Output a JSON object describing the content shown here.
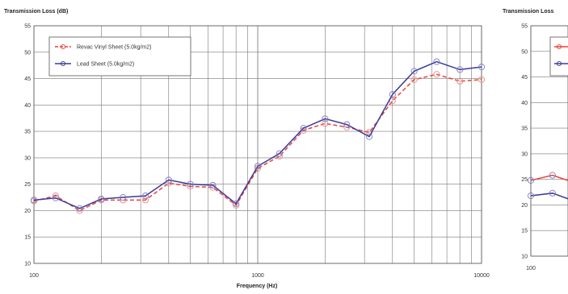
{
  "chart_data": [
    {
      "type": "line",
      "title": "Transmission Loss (dB)",
      "xlabel": "Frequency (Hz)",
      "ylabel": "",
      "xscale": "log",
      "xlim": [
        100,
        10000
      ],
      "ylim": [
        10,
        55
      ],
      "yticks": [
        "10",
        "15",
        "20",
        "25",
        "30",
        "35",
        "40",
        "45",
        "50",
        "55"
      ],
      "xticks": [
        "100",
        "1000",
        "10000"
      ],
      "grid": true,
      "legend": "top-left",
      "x": [
        100,
        125,
        160,
        200,
        250,
        315,
        400,
        500,
        630,
        800,
        1000,
        1250,
        1600,
        2000,
        2500,
        3150,
        4000,
        5000,
        6300,
        8000,
        10000
      ],
      "series": [
        {
          "name": "Revac Vinyl Sheet (5.0kg/m2)",
          "color": "#e8413a",
          "dash": true,
          "values": [
            21.8,
            22.8,
            20.0,
            22.0,
            22.0,
            22.0,
            25.2,
            24.6,
            24.4,
            21.0,
            28.0,
            30.3,
            35.2,
            36.5,
            35.8,
            34.8,
            40.8,
            44.8,
            45.8,
            44.5,
            44.8
          ]
        },
        {
          "name": "Lead Sheet (5.0kg/m2)",
          "color": "#3a3a9a",
          "dash": false,
          "values": [
            22.0,
            22.4,
            20.4,
            22.2,
            22.5,
            22.8,
            25.8,
            25.0,
            24.8,
            21.3,
            28.4,
            30.8,
            35.6,
            37.4,
            36.3,
            34.0,
            42.0,
            46.4,
            48.2,
            46.7,
            47.2
          ]
        }
      ]
    },
    {
      "type": "line",
      "title": "Transmission Loss",
      "xlabel": "",
      "ylabel": "",
      "xscale": "log",
      "xlim": [
        100,
        10000
      ],
      "ylim": [
        10,
        55
      ],
      "yticks": [
        "10",
        "15",
        "20",
        "25",
        "30",
        "35",
        "40",
        "45",
        "50",
        "55"
      ],
      "xticks": [
        "100"
      ],
      "grid": true,
      "legend": "top-left",
      "x": [
        100,
        125,
        160
      ],
      "series": [
        {
          "name": "",
          "color": "#e8413a",
          "dash": false,
          "values": [
            24.8,
            25.8,
            24.2
          ]
        },
        {
          "name": "",
          "color": "#3a3a9a",
          "dash": false,
          "values": [
            21.8,
            22.3,
            20.6
          ]
        }
      ]
    }
  ]
}
